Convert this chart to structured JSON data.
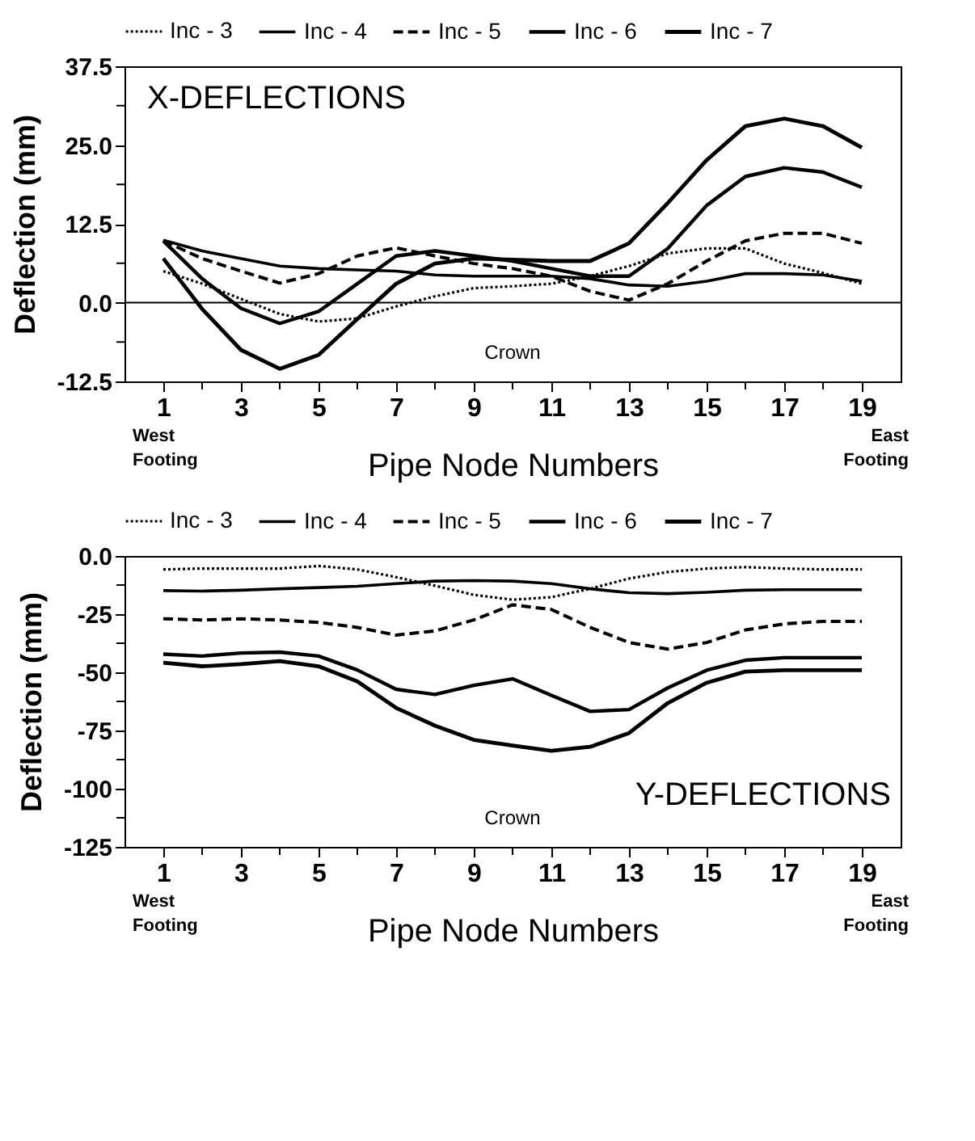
{
  "chart_data": [
    {
      "type": "line",
      "title": "X-DEFLECTIONS",
      "xlabel": "Pipe Node Numbers",
      "ylabel": "Deflection (mm)",
      "x": [
        1,
        2,
        3,
        4,
        5,
        6,
        7,
        8,
        9,
        10,
        11,
        12,
        13,
        14,
        15,
        16,
        17,
        18,
        19
      ],
      "series": [
        {
          "name": "Inc - 3",
          "color": "#000000",
          "line_style": "dotted",
          "values": [
            5,
            3,
            0.6,
            -1.8,
            -3,
            -2.5,
            -0.6,
            1,
            2.3,
            2.6,
            3,
            4.2,
            5.8,
            7.8,
            8.6,
            8.6,
            6.2,
            4.7,
            3
          ]
        },
        {
          "name": "Inc - 4",
          "color": "#000000",
          "line_style": "solid",
          "values": [
            9.9,
            8.2,
            7,
            5.8,
            5.4,
            5.2,
            5,
            4.4,
            4.2,
            4.2,
            4.2,
            3.8,
            2.8,
            2.6,
            3.4,
            4.6,
            4.6,
            4.4,
            3.4
          ]
        },
        {
          "name": "Inc - 5",
          "color": "#000000",
          "line_style": "dashed",
          "values": [
            9.8,
            7,
            5,
            3.1,
            4.6,
            7.4,
            8.7,
            7.4,
            6.2,
            5.4,
            4.2,
            1.8,
            0.4,
            3,
            6.6,
            9.8,
            11,
            11,
            9.4
          ]
        },
        {
          "name": "Inc - 6",
          "color": "#000000",
          "line_style": "solid",
          "values": [
            9.8,
            3.8,
            -0.9,
            -3.3,
            -1.4,
            3,
            7.4,
            8.2,
            7.4,
            6.6,
            5.4,
            4.2,
            4.2,
            8.6,
            15.4,
            20,
            21.4,
            20.7,
            18.3
          ]
        },
        {
          "name": "Inc - 7",
          "color": "#000000",
          "line_style": "solid",
          "values": [
            7,
            -1,
            -7.5,
            -10.5,
            -8.3,
            -2.6,
            3,
            6.2,
            7,
            6.8,
            6.6,
            6.6,
            9.4,
            15.8,
            22.6,
            28,
            29.2,
            28,
            24.6
          ]
        }
      ],
      "xlim": [
        0,
        20
      ],
      "xticks": [
        1,
        {
          "value": 2,
          "label": null
        },
        3,
        {
          "value": 4,
          "label": null
        },
        5,
        {
          "value": 6,
          "label": null
        },
        7,
        {
          "value": 8,
          "label": null
        },
        9,
        {
          "value": 10,
          "label": null
        },
        11,
        {
          "value": 12,
          "label": null
        },
        13,
        {
          "value": 14,
          "label": null
        },
        15,
        {
          "value": 16,
          "label": null
        },
        17,
        {
          "value": 18,
          "label": null
        },
        19
      ],
      "ylim": [
        -12.5,
        37.5
      ],
      "yticks": [
        {
          "value": -12.5,
          "label": "-12.5"
        },
        {
          "value": -6.25,
          "label": null
        },
        {
          "value": 0,
          "label": "0.0"
        },
        {
          "value": 6.25,
          "label": null
        },
        {
          "value": 12.5,
          "label": "12.5"
        },
        {
          "value": 18.75,
          "label": null
        },
        {
          "value": 25,
          "label": "25.0"
        },
        {
          "value": 31.25,
          "label": null
        },
        {
          "value": 37.5,
          "label": "37.5"
        }
      ],
      "ref_lines": [
        {
          "axis": "y",
          "value": 0
        }
      ],
      "annotations": [
        "West Footing",
        "East Footing",
        "Crown"
      ],
      "legend": "top",
      "grid": false
    },
    {
      "type": "line",
      "title": "Y-DEFLECTIONS",
      "xlabel": "Pipe Node Numbers",
      "ylabel": "Deflection (mm)",
      "x": [
        1,
        2,
        3,
        4,
        5,
        6,
        7,
        8,
        9,
        10,
        11,
        12,
        13,
        14,
        15,
        16,
        17,
        18,
        19
      ],
      "series": [
        {
          "name": "Inc - 3",
          "color": "#000000",
          "line_style": "dotted",
          "values": [
            -5.8,
            -5.4,
            -5.4,
            -5.4,
            -4.3,
            -5.8,
            -9.1,
            -12.8,
            -16.7,
            -18.8,
            -17.7,
            -14.1,
            -9.7,
            -6.9,
            -5.4,
            -4.8,
            -5.4,
            -5.8,
            -5.8
          ]
        },
        {
          "name": "Inc - 4",
          "color": "#000000",
          "line_style": "solid",
          "values": [
            -14.9,
            -15.1,
            -14.7,
            -14.1,
            -13.6,
            -13,
            -11.9,
            -10.8,
            -10.6,
            -10.8,
            -11.9,
            -14.1,
            -15.8,
            -16.2,
            -15.6,
            -14.7,
            -14.5,
            -14.5,
            -14.5
          ]
        },
        {
          "name": "Inc - 5",
          "color": "#000000",
          "line_style": "dashed",
          "values": [
            -27,
            -27.5,
            -27,
            -27.5,
            -28.6,
            -30.7,
            -34,
            -32.2,
            -27.5,
            -21,
            -23,
            -30.7,
            -37.2,
            -40,
            -37.2,
            -31.8,
            -29.2,
            -28.1,
            -28.1
          ]
        },
        {
          "name": "Inc - 6",
          "color": "#000000",
          "line_style": "solid",
          "values": [
            -42.2,
            -43,
            -41.7,
            -41.3,
            -43,
            -49,
            -57.3,
            -59.5,
            -55.6,
            -52.8,
            -59.9,
            -66.8,
            -66,
            -56.7,
            -49.1,
            -44.8,
            -43.7,
            -43.7,
            -43.7
          ]
        },
        {
          "name": "Inc - 7",
          "color": "#000000",
          "line_style": "solid",
          "values": [
            -45.9,
            -47.4,
            -46.5,
            -45.2,
            -47.4,
            -53.9,
            -65.3,
            -72.9,
            -79,
            -81.5,
            -83.7,
            -82,
            -76.1,
            -63.2,
            -54.5,
            -49.7,
            -49.1,
            -49.1,
            -49.1
          ]
        }
      ],
      "xlim": [
        0,
        20
      ],
      "xticks": [
        1,
        {
          "value": 2,
          "label": null
        },
        3,
        {
          "value": 4,
          "label": null
        },
        5,
        {
          "value": 6,
          "label": null
        },
        7,
        {
          "value": 8,
          "label": null
        },
        9,
        {
          "value": 10,
          "label": null
        },
        11,
        {
          "value": 12,
          "label": null
        },
        13,
        {
          "value": 14,
          "label": null
        },
        15,
        {
          "value": 16,
          "label": null
        },
        17,
        {
          "value": 18,
          "label": null
        },
        19
      ],
      "ylim": [
        -125,
        0
      ],
      "yticks": [
        -125,
        {
          "value": -112.5,
          "label": null
        },
        -100,
        {
          "value": -87.5,
          "label": null
        },
        -75,
        {
          "value": -62.5,
          "label": null
        },
        -50,
        {
          "value": -37.5,
          "label": null
        },
        -25,
        {
          "value": -12.5,
          "label": null
        },
        {
          "value": 0,
          "label": "0.0"
        }
      ],
      "annotations": [
        "West Footing",
        "East Footing",
        "Crown"
      ],
      "legend": "top",
      "grid": false
    }
  ]
}
